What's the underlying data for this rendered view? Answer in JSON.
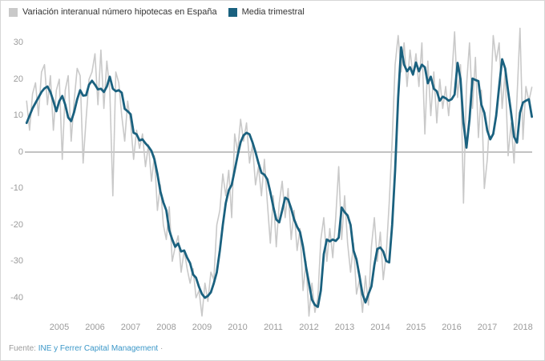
{
  "legend": {
    "items": [
      {
        "label": "Variación interanual número hipotecas en España",
        "color": "#c9c9c9"
      },
      {
        "label": "Media trimestral",
        "color": "#1a617f"
      }
    ]
  },
  "source": {
    "prefix": "Fuente:",
    "link_text": "INE y Ferrer Capital Management",
    "bullet": "·"
  },
  "colors": {
    "background": "#ffffff",
    "zero_line": "#878787",
    "tick_text": "#9b9b9b",
    "legend_text": "#333333",
    "link": "#3b97c8",
    "gray_series": "#c9c9c9",
    "teal_series": "#1a617f"
  },
  "chart_data": {
    "type": "line",
    "title": "",
    "xlabel": "",
    "ylabel": "",
    "x_start": "2004-02",
    "x_end": "2018-04",
    "x_frequency": "monthly",
    "x_tick_labels": [
      "2005",
      "2006",
      "2007",
      "2008",
      "2009",
      "2010",
      "2011",
      "2012",
      "2013",
      "2014",
      "2015",
      "2016",
      "2017",
      "2018"
    ],
    "yticks": [
      30,
      20,
      10,
      0,
      -10,
      -20,
      -30,
      -40
    ],
    "ylim": [
      -47,
      35
    ],
    "grid": false,
    "zero_line": true,
    "legend_position": "top-left",
    "series": [
      {
        "name": "Variación interanual número hipotecas en España",
        "color": "#c9c9c9",
        "values": [
          14,
          6,
          16,
          19,
          10,
          22,
          24,
          13,
          21,
          6,
          17,
          20,
          -2,
          17,
          21,
          3,
          14,
          23,
          21,
          -3,
          9,
          20,
          22,
          27,
          13,
          28,
          12,
          25,
          17,
          -12,
          22,
          19,
          10,
          3,
          14,
          8,
          -2,
          6,
          1,
          5,
          -4,
          2,
          -8,
          -1,
          -16,
          -9,
          -20,
          -24,
          -15,
          -30,
          -26,
          -23,
          -33,
          -27,
          -32,
          -36,
          -32,
          -40,
          -38,
          -45,
          -36,
          -41,
          -33,
          -35,
          -20,
          -16,
          -6,
          -12,
          -5,
          -18,
          5,
          0,
          9,
          3,
          8,
          -3,
          2,
          -9,
          -4,
          -12,
          -2,
          -14,
          -25,
          -12,
          -26,
          -14,
          -8,
          -18,
          -10,
          -24,
          -16,
          -27,
          -21,
          -38,
          -30,
          -45,
          -36,
          -44,
          -40,
          -24,
          -18,
          -30,
          -21,
          -29,
          -18,
          -4,
          -24,
          -12,
          -25,
          -33,
          -25,
          -39,
          -35,
          -44,
          -34,
          -42,
          -26,
          -18,
          -30,
          -22,
          -35,
          -28,
          -14,
          3,
          24,
          32,
          22,
          30,
          18,
          28,
          21,
          27,
          18,
          30,
          5,
          25,
          10,
          22,
          8,
          20,
          12,
          18,
          10,
          20,
          33,
          15,
          24,
          -14,
          18,
          30,
          12,
          26,
          4,
          17,
          -10,
          -2,
          12,
          32,
          25,
          30,
          12,
          22,
          -1,
          8,
          -3,
          15,
          34,
          3.5,
          18,
          14,
          17.8
        ]
      },
      {
        "name": "Media trimestral",
        "color": "#1a617f",
        "values": [
          8,
          10,
          12,
          13.5,
          15,
          16.5,
          17.5,
          18,
          16.5,
          14,
          11.2,
          14,
          15.4,
          13,
          9.5,
          8.5,
          11,
          14.5,
          17,
          15.5,
          15.6,
          18.5,
          19.6,
          18.5,
          17.2,
          17.4,
          16.5,
          18,
          20.7,
          17.4,
          16.7,
          17,
          16.3,
          11.9,
          11.2,
          10.4,
          5.3,
          4.9,
          3.2,
          3.5,
          2.4,
          1.5,
          0.3,
          -2,
          -6,
          -10.8,
          -13.8,
          -16,
          -21.5,
          -24,
          -26,
          -25.1,
          -27.3,
          -27,
          -29,
          -30.5,
          -33.6,
          -34.5,
          -37,
          -39,
          -40,
          -39.5,
          -38.5,
          -36,
          -33,
          -27,
          -20,
          -14,
          -10.5,
          -9,
          -5,
          -0.9,
          2.7,
          4.6,
          5.3,
          4.9,
          2.7,
          0,
          -3,
          -5.7,
          -6.2,
          -7.5,
          -11,
          -15,
          -18.5,
          -19.3,
          -16,
          -12.5,
          -13,
          -15.5,
          -18.5,
          -20.5,
          -22,
          -26,
          -31.5,
          -36,
          -40.5,
          -42,
          -42.5,
          -38,
          -28,
          -24,
          -24.5,
          -24,
          -24.4,
          -23.5,
          -15.2,
          -16.5,
          -17.4,
          -20,
          -27,
          -29.5,
          -34,
          -39,
          -41.3,
          -39,
          -36.9,
          -31,
          -26.6,
          -26.2,
          -27.3,
          -29.9,
          -30.3,
          -20,
          -5,
          15,
          28.8,
          24,
          22.2,
          23.3,
          21.3,
          24.6,
          22.2,
          24,
          23.3,
          18.9,
          20.7,
          17.4,
          16.7,
          14.1,
          15.2,
          14.8,
          14.1,
          14.5,
          15.8,
          24.5,
          20,
          8,
          1.2,
          9,
          20.2,
          19.8,
          19.5,
          13,
          10.8,
          5.9,
          3.5,
          5,
          10,
          18,
          25.5,
          23,
          16.7,
          10.8,
          4.2,
          2.6,
          10.8,
          13.6,
          14.1,
          14.5,
          9.7
        ]
      }
    ]
  }
}
